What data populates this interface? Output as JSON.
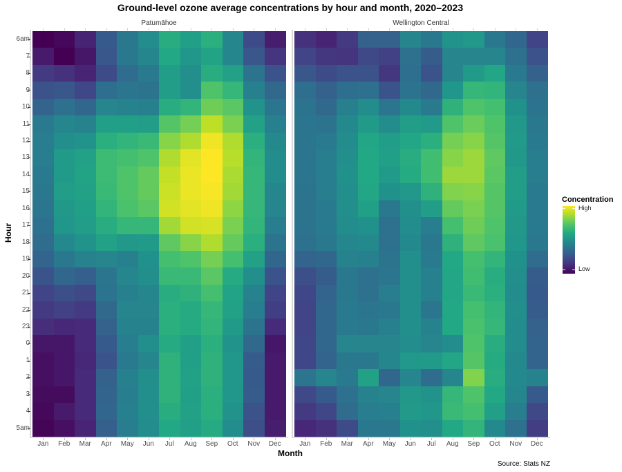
{
  "chart_data": {
    "type": "heatmap",
    "title": "Ground-level ozone average concentrations by hour and month, 2020–2023",
    "xlabel": "Month",
    "ylabel": "Hour",
    "source": "Source: Stats NZ",
    "colormap": "viridis",
    "legend": {
      "title": "Concentration",
      "high_label": "High",
      "low_label": "Low",
      "position": "right"
    },
    "months": [
      "Jan",
      "Feb",
      "Mar",
      "Apr",
      "May",
      "Jun",
      "Jul",
      "Aug",
      "Sep",
      "Oct",
      "Nov",
      "Dec"
    ],
    "hours": [
      "6am",
      "7",
      "8",
      "9",
      "10",
      "11",
      "12",
      "13",
      "14",
      "15",
      "16",
      "17",
      "18",
      "19",
      "20",
      "21",
      "22",
      "23",
      "0",
      "1",
      "2",
      "3",
      "4",
      "5am"
    ],
    "value_scale": "normalized 0 (Low) to 1 (High)",
    "panels": [
      {
        "name": "Patumāhoe",
        "values": [
          [
            0.0,
            0.02,
            0.1,
            0.28,
            0.4,
            0.48,
            0.62,
            0.56,
            0.63,
            0.46,
            0.23,
            0.08
          ],
          [
            0.07,
            0.0,
            0.06,
            0.27,
            0.4,
            0.46,
            0.6,
            0.52,
            0.58,
            0.46,
            0.27,
            0.15
          ],
          [
            0.17,
            0.14,
            0.1,
            0.23,
            0.35,
            0.41,
            0.55,
            0.49,
            0.62,
            0.57,
            0.38,
            0.26
          ],
          [
            0.25,
            0.27,
            0.21,
            0.36,
            0.39,
            0.38,
            0.55,
            0.49,
            0.72,
            0.66,
            0.43,
            0.34
          ],
          [
            0.32,
            0.37,
            0.33,
            0.45,
            0.44,
            0.43,
            0.62,
            0.65,
            0.78,
            0.74,
            0.51,
            0.39
          ],
          [
            0.41,
            0.46,
            0.44,
            0.56,
            0.56,
            0.55,
            0.73,
            0.79,
            0.9,
            0.8,
            0.57,
            0.43
          ],
          [
            0.42,
            0.49,
            0.51,
            0.63,
            0.65,
            0.67,
            0.82,
            0.88,
            0.98,
            0.88,
            0.63,
            0.47
          ],
          [
            0.42,
            0.54,
            0.57,
            0.68,
            0.7,
            0.72,
            0.88,
            0.96,
            1.0,
            0.89,
            0.65,
            0.48
          ],
          [
            0.41,
            0.54,
            0.58,
            0.68,
            0.72,
            0.76,
            0.91,
            0.97,
            1.0,
            0.87,
            0.66,
            0.48
          ],
          [
            0.4,
            0.55,
            0.57,
            0.67,
            0.72,
            0.76,
            0.92,
            0.97,
            0.99,
            0.86,
            0.66,
            0.46
          ],
          [
            0.39,
            0.53,
            0.56,
            0.65,
            0.71,
            0.74,
            0.93,
            0.96,
            0.98,
            0.83,
            0.66,
            0.45
          ],
          [
            0.37,
            0.52,
            0.55,
            0.62,
            0.66,
            0.66,
            0.86,
            0.93,
            0.94,
            0.8,
            0.65,
            0.42
          ],
          [
            0.35,
            0.47,
            0.51,
            0.57,
            0.53,
            0.54,
            0.75,
            0.82,
            0.88,
            0.76,
            0.63,
            0.38
          ],
          [
            0.32,
            0.4,
            0.44,
            0.45,
            0.43,
            0.5,
            0.7,
            0.72,
            0.79,
            0.7,
            0.57,
            0.33
          ],
          [
            0.26,
            0.33,
            0.3,
            0.39,
            0.46,
            0.49,
            0.67,
            0.67,
            0.74,
            0.61,
            0.49,
            0.26
          ],
          [
            0.2,
            0.24,
            0.22,
            0.38,
            0.43,
            0.46,
            0.62,
            0.64,
            0.7,
            0.58,
            0.44,
            0.2
          ],
          [
            0.17,
            0.19,
            0.17,
            0.34,
            0.45,
            0.45,
            0.63,
            0.61,
            0.66,
            0.57,
            0.42,
            0.18
          ],
          [
            0.13,
            0.11,
            0.12,
            0.31,
            0.44,
            0.44,
            0.63,
            0.61,
            0.65,
            0.54,
            0.38,
            0.12
          ],
          [
            0.06,
            0.06,
            0.12,
            0.28,
            0.42,
            0.49,
            0.61,
            0.56,
            0.63,
            0.51,
            0.34,
            0.06
          ],
          [
            0.04,
            0.06,
            0.11,
            0.26,
            0.41,
            0.45,
            0.64,
            0.56,
            0.64,
            0.52,
            0.29,
            0.07
          ],
          [
            0.04,
            0.06,
            0.12,
            0.31,
            0.43,
            0.49,
            0.64,
            0.57,
            0.64,
            0.52,
            0.28,
            0.07
          ],
          [
            0.03,
            0.03,
            0.12,
            0.32,
            0.42,
            0.49,
            0.64,
            0.56,
            0.63,
            0.52,
            0.29,
            0.07
          ],
          [
            0.02,
            0.07,
            0.12,
            0.33,
            0.43,
            0.49,
            0.62,
            0.57,
            0.63,
            0.51,
            0.25,
            0.07
          ],
          [
            0.01,
            0.04,
            0.1,
            0.3,
            0.42,
            0.48,
            0.6,
            0.56,
            0.61,
            0.48,
            0.24,
            0.08
          ]
        ]
      },
      {
        "name": "Wellington Central",
        "values": [
          [
            0.14,
            0.1,
            0.17,
            0.31,
            0.31,
            0.45,
            0.4,
            0.51,
            0.53,
            0.4,
            0.33,
            0.2
          ],
          [
            0.2,
            0.16,
            0.15,
            0.22,
            0.19,
            0.37,
            0.29,
            0.45,
            0.45,
            0.45,
            0.37,
            0.25
          ],
          [
            0.27,
            0.23,
            0.25,
            0.25,
            0.16,
            0.36,
            0.25,
            0.45,
            0.54,
            0.59,
            0.41,
            0.31
          ],
          [
            0.36,
            0.31,
            0.36,
            0.37,
            0.26,
            0.38,
            0.34,
            0.52,
            0.66,
            0.65,
            0.45,
            0.37
          ],
          [
            0.38,
            0.34,
            0.43,
            0.48,
            0.39,
            0.47,
            0.41,
            0.64,
            0.72,
            0.7,
            0.5,
            0.38
          ],
          [
            0.39,
            0.38,
            0.47,
            0.54,
            0.48,
            0.55,
            0.54,
            0.72,
            0.77,
            0.72,
            0.53,
            0.4
          ],
          [
            0.39,
            0.41,
            0.48,
            0.59,
            0.55,
            0.59,
            0.63,
            0.79,
            0.82,
            0.73,
            0.54,
            0.41
          ],
          [
            0.39,
            0.42,
            0.49,
            0.6,
            0.56,
            0.62,
            0.69,
            0.82,
            0.85,
            0.75,
            0.53,
            0.42
          ],
          [
            0.39,
            0.42,
            0.5,
            0.6,
            0.54,
            0.61,
            0.69,
            0.85,
            0.85,
            0.74,
            0.55,
            0.42
          ],
          [
            0.38,
            0.42,
            0.49,
            0.59,
            0.5,
            0.53,
            0.64,
            0.81,
            0.82,
            0.73,
            0.55,
            0.41
          ],
          [
            0.38,
            0.41,
            0.49,
            0.56,
            0.4,
            0.49,
            0.55,
            0.76,
            0.8,
            0.73,
            0.54,
            0.41
          ],
          [
            0.38,
            0.41,
            0.48,
            0.5,
            0.37,
            0.48,
            0.42,
            0.7,
            0.78,
            0.72,
            0.53,
            0.41
          ],
          [
            0.37,
            0.4,
            0.46,
            0.47,
            0.37,
            0.47,
            0.4,
            0.64,
            0.75,
            0.71,
            0.52,
            0.4
          ],
          [
            0.32,
            0.33,
            0.44,
            0.43,
            0.38,
            0.49,
            0.41,
            0.6,
            0.7,
            0.65,
            0.5,
            0.35
          ],
          [
            0.24,
            0.29,
            0.4,
            0.37,
            0.39,
            0.49,
            0.43,
            0.59,
            0.69,
            0.62,
            0.49,
            0.29
          ],
          [
            0.21,
            0.32,
            0.4,
            0.37,
            0.42,
            0.49,
            0.43,
            0.59,
            0.67,
            0.63,
            0.48,
            0.28
          ],
          [
            0.2,
            0.33,
            0.41,
            0.39,
            0.4,
            0.49,
            0.39,
            0.6,
            0.7,
            0.65,
            0.49,
            0.29
          ],
          [
            0.2,
            0.33,
            0.41,
            0.4,
            0.43,
            0.49,
            0.44,
            0.6,
            0.71,
            0.66,
            0.48,
            0.31
          ],
          [
            0.21,
            0.33,
            0.45,
            0.45,
            0.45,
            0.48,
            0.45,
            0.48,
            0.72,
            0.62,
            0.48,
            0.32
          ],
          [
            0.21,
            0.32,
            0.4,
            0.4,
            0.46,
            0.53,
            0.54,
            0.59,
            0.73,
            0.61,
            0.47,
            0.32
          ],
          [
            0.39,
            0.45,
            0.41,
            0.57,
            0.33,
            0.45,
            0.35,
            0.45,
            0.81,
            0.62,
            0.47,
            0.44
          ],
          [
            0.22,
            0.28,
            0.37,
            0.44,
            0.45,
            0.53,
            0.51,
            0.66,
            0.72,
            0.6,
            0.46,
            0.28
          ],
          [
            0.17,
            0.21,
            0.35,
            0.42,
            0.43,
            0.54,
            0.52,
            0.67,
            0.7,
            0.56,
            0.42,
            0.22
          ],
          [
            0.11,
            0.14,
            0.23,
            0.4,
            0.4,
            0.5,
            0.49,
            0.6,
            0.65,
            0.47,
            0.37,
            0.18
          ]
        ]
      }
    ]
  }
}
